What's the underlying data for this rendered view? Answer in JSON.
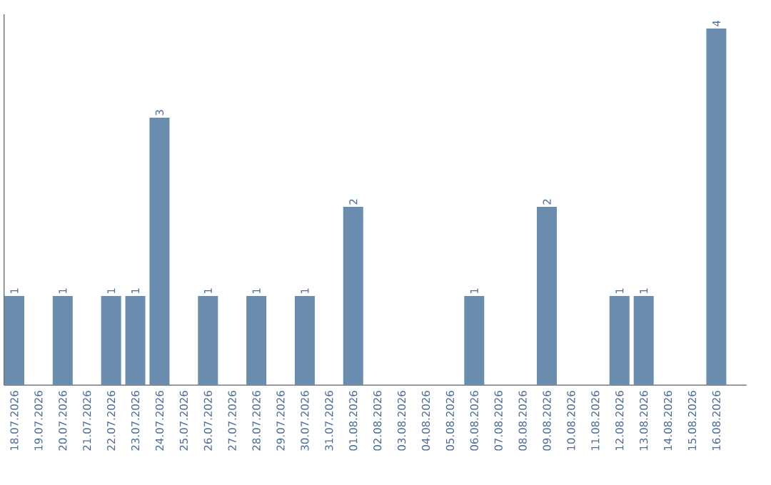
{
  "chart_data": {
    "type": "bar",
    "categories": [
      "18.07.2026",
      "19.07.2026",
      "20.07.2026",
      "21.07.2026",
      "22.07.2026",
      "23.07.2026",
      "24.07.2026",
      "25.07.2026",
      "26.07.2026",
      "27.07.2026",
      "28.07.2026",
      "29.07.2026",
      "30.07.2026",
      "31.07.2026",
      "01.08.2026",
      "02.08.2026",
      "03.08.2026",
      "04.08.2026",
      "05.08.2026",
      "06.08.2026",
      "07.08.2026",
      "08.08.2026",
      "09.08.2026",
      "10.08.2026",
      "11.08.2026",
      "12.08.2026",
      "13.08.2026",
      "14.08.2026",
      "15.08.2026",
      "16.08.2026"
    ],
    "values": [
      1,
      0,
      1,
      0,
      1,
      1,
      3,
      0,
      1,
      0,
      1,
      0,
      1,
      0,
      2,
      0,
      0,
      0,
      0,
      1,
      0,
      0,
      2,
      0,
      0,
      1,
      1,
      0,
      0,
      4
    ],
    "value_labels": [
      "1",
      null,
      "1",
      null,
      "1",
      "1",
      "3",
      null,
      "1",
      null,
      "1",
      null,
      "1",
      null,
      "2",
      null,
      null,
      null,
      null,
      "1",
      null,
      null,
      "2",
      null,
      null,
      "1",
      "1",
      null,
      null,
      "4"
    ],
    "color": "#6a8caf"
  }
}
